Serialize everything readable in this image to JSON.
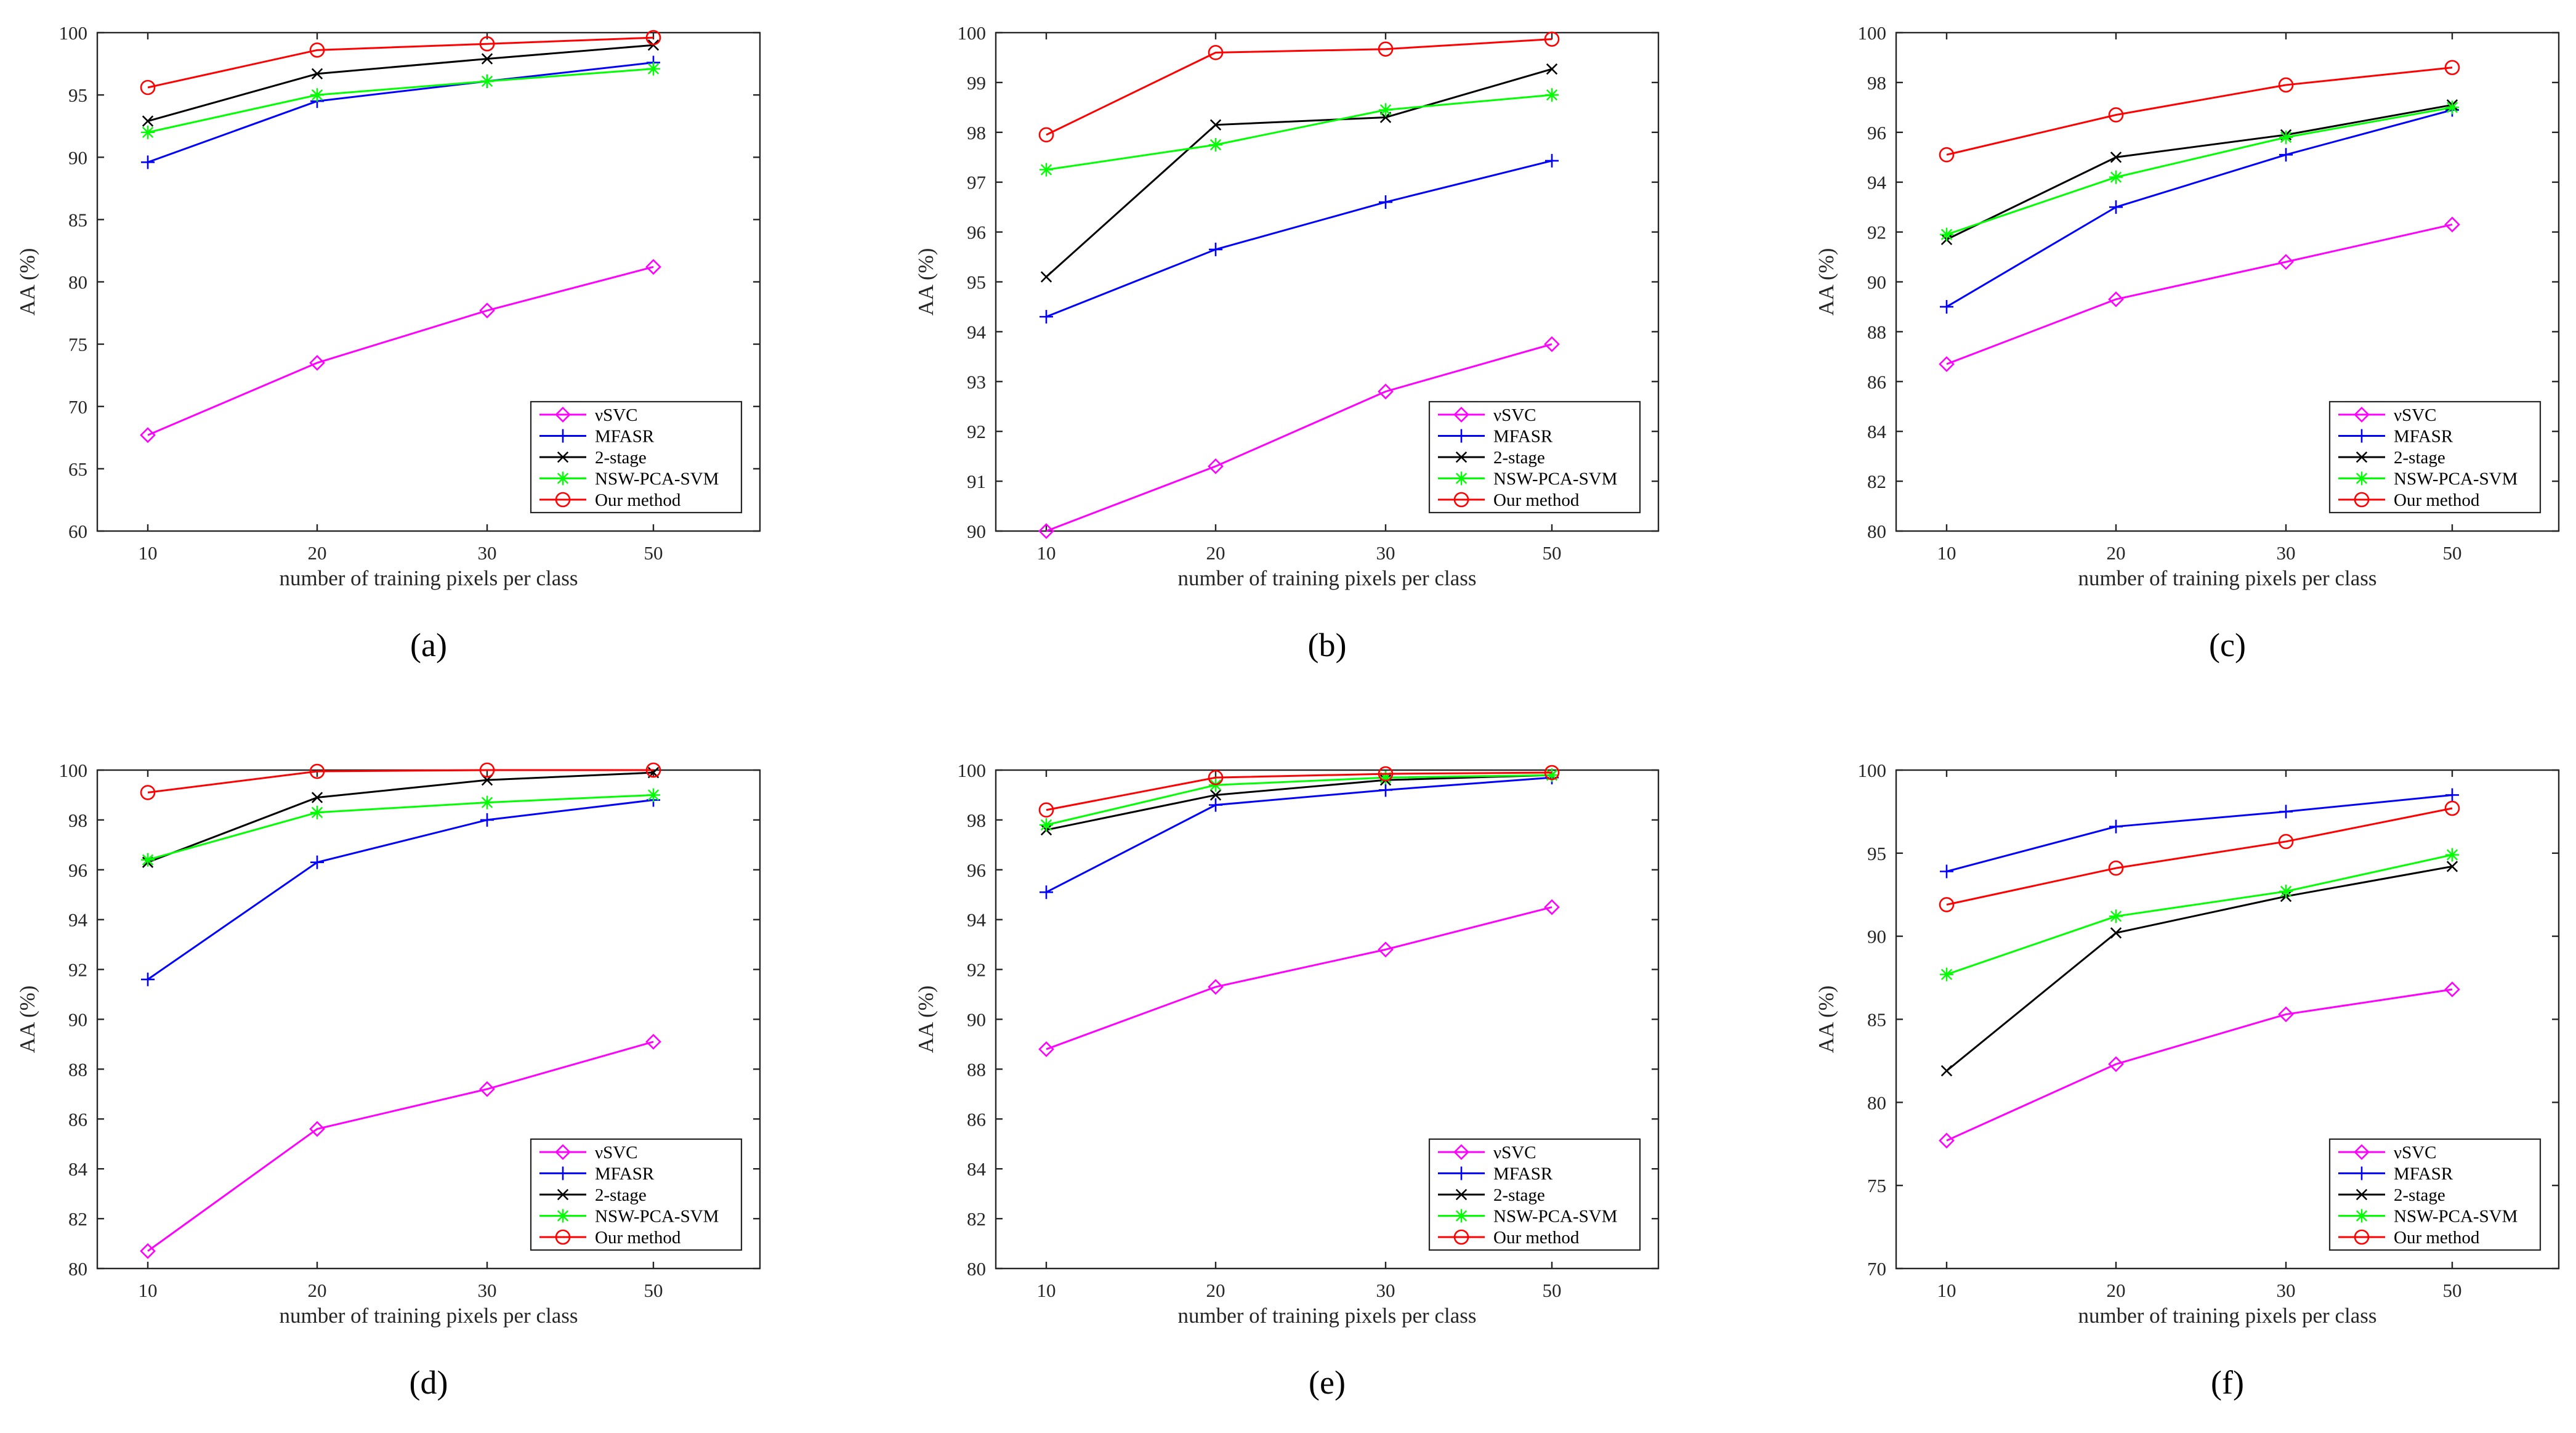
{
  "chart_data": [
    {
      "type": "line",
      "panel_label": "(a)",
      "xlabel": "number of training pixels per class",
      "ylabel": "AA (%)",
      "x": [
        10,
        20,
        30,
        50
      ],
      "xticks": [
        "10",
        "20",
        "30",
        "50"
      ],
      "ylim": [
        60,
        100
      ],
      "yticks": [
        60,
        65,
        70,
        75,
        80,
        85,
        90,
        95,
        100
      ],
      "legend_position": "bottom-right",
      "series": [
        {
          "name": "νSVC",
          "color": "#ff00ff",
          "marker": "diamond",
          "values": [
            67.7,
            73.5,
            77.7,
            81.2
          ]
        },
        {
          "name": "MFASR",
          "color": "#0000ff",
          "marker": "plus",
          "values": [
            89.6,
            94.5,
            96.1,
            97.6
          ]
        },
        {
          "name": "2-stage",
          "color": "#000000",
          "marker": "x",
          "values": [
            92.9,
            96.7,
            97.9,
            99.0
          ]
        },
        {
          "name": "NSW-PCA-SVM",
          "color": "#00ff00",
          "marker": "star",
          "values": [
            92.0,
            95.0,
            96.1,
            97.1
          ]
        },
        {
          "name": "Our method",
          "color": "#ff0000",
          "marker": "circle",
          "values": [
            95.6,
            98.6,
            99.1,
            99.6
          ]
        }
      ]
    },
    {
      "type": "line",
      "panel_label": "(b)",
      "xlabel": "number of training pixels per class",
      "ylabel": "AA (%)",
      "x": [
        10,
        20,
        30,
        50
      ],
      "xticks": [
        "10",
        "20",
        "30",
        "50"
      ],
      "ylim": [
        90,
        100
      ],
      "yticks": [
        90,
        91,
        92,
        93,
        94,
        95,
        96,
        97,
        98,
        99,
        100
      ],
      "legend_position": "bottom-right",
      "series": [
        {
          "name": "νSVC",
          "color": "#ff00ff",
          "marker": "diamond",
          "values": [
            90.0,
            91.3,
            92.8,
            93.75
          ]
        },
        {
          "name": "MFASR",
          "color": "#0000ff",
          "marker": "plus",
          "values": [
            94.3,
            95.65,
            96.6,
            97.43
          ]
        },
        {
          "name": "2-stage",
          "color": "#000000",
          "marker": "x",
          "values": [
            95.1,
            98.15,
            98.3,
            99.27
          ]
        },
        {
          "name": "NSW-PCA-SVM",
          "color": "#00ff00",
          "marker": "star",
          "values": [
            97.25,
            97.75,
            98.45,
            98.75
          ]
        },
        {
          "name": "Our method",
          "color": "#ff0000",
          "marker": "circle",
          "values": [
            97.95,
            99.6,
            99.67,
            99.87
          ]
        }
      ]
    },
    {
      "type": "line",
      "panel_label": "(c)",
      "xlabel": "number of training pixels per class",
      "ylabel": "AA (%)",
      "x": [
        10,
        20,
        30,
        50
      ],
      "xticks": [
        "10",
        "20",
        "30",
        "50"
      ],
      "ylim": [
        80,
        100
      ],
      "yticks": [
        80,
        82,
        84,
        86,
        88,
        90,
        92,
        94,
        96,
        98,
        100
      ],
      "legend_position": "bottom-right",
      "series": [
        {
          "name": "νSVC",
          "color": "#ff00ff",
          "marker": "diamond",
          "values": [
            86.7,
            89.3,
            90.8,
            92.3
          ]
        },
        {
          "name": "MFASR",
          "color": "#0000ff",
          "marker": "plus",
          "values": [
            89.0,
            93.0,
            95.1,
            96.9
          ]
        },
        {
          "name": "2-stage",
          "color": "#000000",
          "marker": "x",
          "values": [
            91.7,
            95.0,
            95.9,
            97.1
          ]
        },
        {
          "name": "NSW-PCA-SVM",
          "color": "#00ff00",
          "marker": "star",
          "values": [
            91.9,
            94.2,
            95.8,
            97.0
          ]
        },
        {
          "name": "Our method",
          "color": "#ff0000",
          "marker": "circle",
          "values": [
            95.1,
            96.7,
            97.9,
            98.6
          ]
        }
      ]
    },
    {
      "type": "line",
      "panel_label": "(d)",
      "xlabel": "number of training pixels per class",
      "ylabel": "AA (%)",
      "x": [
        10,
        20,
        30,
        50
      ],
      "xticks": [
        "10",
        "20",
        "30",
        "50"
      ],
      "ylim": [
        80,
        100
      ],
      "yticks": [
        80,
        82,
        84,
        86,
        88,
        90,
        92,
        94,
        96,
        98,
        100
      ],
      "legend_position": "bottom-right",
      "series": [
        {
          "name": "νSVC",
          "color": "#ff00ff",
          "marker": "diamond",
          "values": [
            80.7,
            85.6,
            87.2,
            89.1
          ]
        },
        {
          "name": "MFASR",
          "color": "#0000ff",
          "marker": "plus",
          "values": [
            91.6,
            96.3,
            98.0,
            98.8
          ]
        },
        {
          "name": "2-stage",
          "color": "#000000",
          "marker": "x",
          "values": [
            96.3,
            98.9,
            99.6,
            99.9
          ]
        },
        {
          "name": "NSW-PCA-SVM",
          "color": "#00ff00",
          "marker": "star",
          "values": [
            96.4,
            98.3,
            98.7,
            99.0
          ]
        },
        {
          "name": "Our method",
          "color": "#ff0000",
          "marker": "circle",
          "values": [
            99.1,
            99.95,
            100.0,
            100.0
          ]
        }
      ]
    },
    {
      "type": "line",
      "panel_label": "(e)",
      "xlabel": "number of training pixels per class",
      "ylabel": "AA (%)",
      "x": [
        10,
        20,
        30,
        50
      ],
      "xticks": [
        "10",
        "20",
        "30",
        "50"
      ],
      "ylim": [
        80,
        100
      ],
      "yticks": [
        80,
        82,
        84,
        86,
        88,
        90,
        92,
        94,
        96,
        98,
        100
      ],
      "legend_position": "bottom-right",
      "series": [
        {
          "name": "νSVC",
          "color": "#ff00ff",
          "marker": "diamond",
          "values": [
            88.8,
            91.3,
            92.8,
            94.5
          ]
        },
        {
          "name": "MFASR",
          "color": "#0000ff",
          "marker": "plus",
          "values": [
            95.1,
            98.6,
            99.2,
            99.7
          ]
        },
        {
          "name": "2-stage",
          "color": "#000000",
          "marker": "x",
          "values": [
            97.6,
            99.0,
            99.6,
            99.8
          ]
        },
        {
          "name": "NSW-PCA-SVM",
          "color": "#00ff00",
          "marker": "star",
          "values": [
            97.8,
            99.4,
            99.7,
            99.8
          ]
        },
        {
          "name": "Our method",
          "color": "#ff0000",
          "marker": "circle",
          "values": [
            98.4,
            99.7,
            99.85,
            99.9
          ]
        }
      ]
    },
    {
      "type": "line",
      "panel_label": "(f)",
      "xlabel": "number of training pixels per class",
      "ylabel": "AA (%)",
      "x": [
        10,
        20,
        30,
        50
      ],
      "xticks": [
        "10",
        "20",
        "30",
        "50"
      ],
      "ylim": [
        70,
        100
      ],
      "yticks": [
        70,
        75,
        80,
        85,
        90,
        95,
        100
      ],
      "legend_position": "bottom-right",
      "series": [
        {
          "name": "νSVC",
          "color": "#ff00ff",
          "marker": "diamond",
          "values": [
            77.7,
            82.3,
            85.3,
            86.8
          ]
        },
        {
          "name": "MFASR",
          "color": "#0000ff",
          "marker": "plus",
          "values": [
            93.9,
            96.6,
            97.5,
            98.5
          ]
        },
        {
          "name": "2-stage",
          "color": "#000000",
          "marker": "x",
          "values": [
            81.9,
            90.2,
            92.4,
            94.2
          ]
        },
        {
          "name": "NSW-PCA-SVM",
          "color": "#00ff00",
          "marker": "star",
          "values": [
            87.7,
            91.2,
            92.7,
            94.9
          ]
        },
        {
          "name": "Our method",
          "color": "#ff0000",
          "marker": "circle",
          "values": [
            91.9,
            94.1,
            95.7,
            97.7
          ]
        }
      ]
    }
  ]
}
